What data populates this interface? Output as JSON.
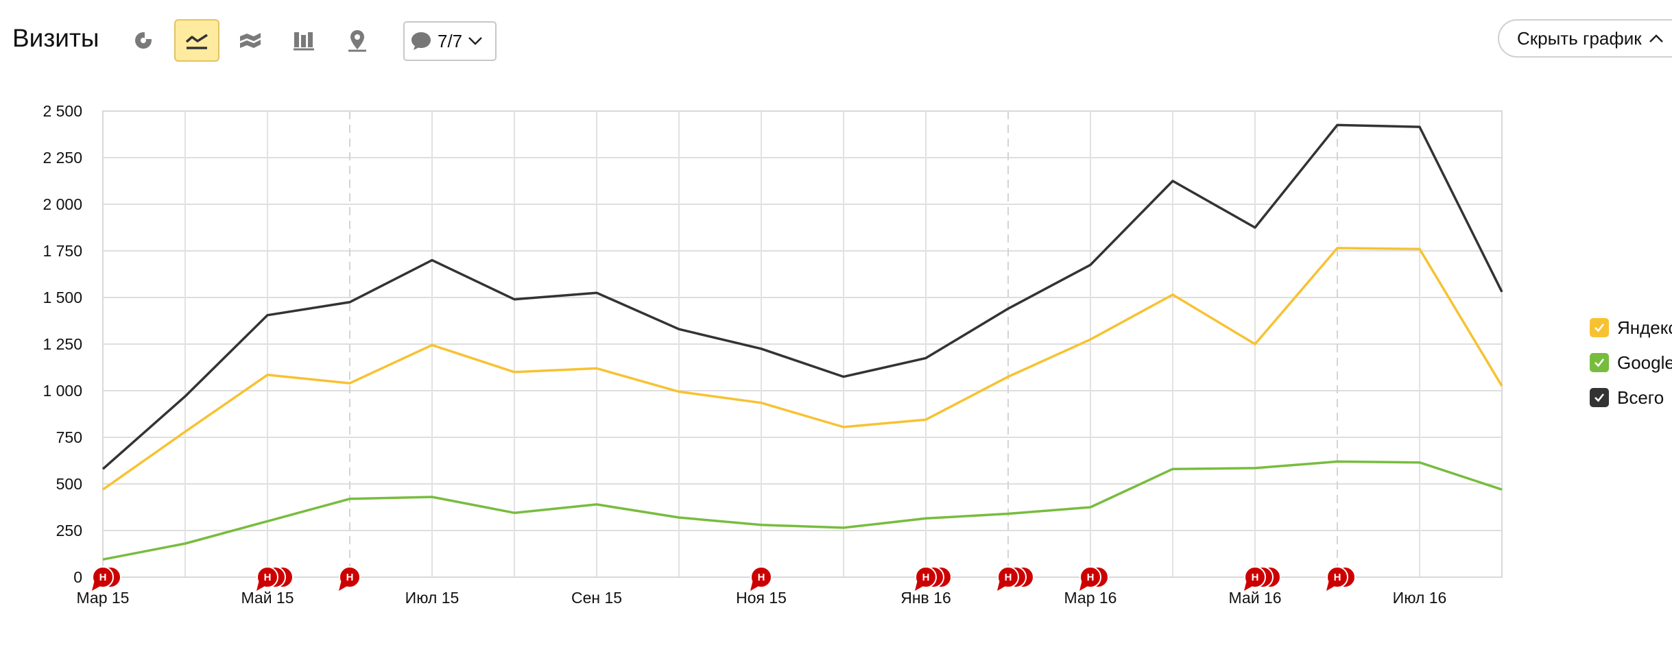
{
  "header": {
    "title": "Визиты",
    "notes_label": "7/7",
    "hide_button_label": "Скрыть график"
  },
  "toolbar": {
    "buttons": [
      {
        "icon": "pie-chart-icon",
        "active": false
      },
      {
        "icon": "line-chart-icon",
        "active": true
      },
      {
        "icon": "area-chart-icon",
        "active": false
      },
      {
        "icon": "bar-chart-icon",
        "active": false
      },
      {
        "icon": "map-pin-icon",
        "active": false
      }
    ]
  },
  "colors": {
    "yandex": "#f7c232",
    "google": "#78bc3e",
    "total": "#333333",
    "note_marker": "#cc0000",
    "active_button": "#ffeba0"
  },
  "legend": [
    {
      "label": "Яндекс",
      "color": "#f7c232",
      "checked": true
    },
    {
      "label": "Google",
      "color": "#78bc3e",
      "checked": true
    },
    {
      "label": "Всего",
      "color": "#333333",
      "checked": true
    }
  ],
  "chart_data": {
    "type": "line",
    "x": [
      "2015-03",
      "2015-04",
      "2015-05",
      "2015-06",
      "2015-07",
      "2015-08",
      "2015-09",
      "2015-10",
      "2015-11",
      "2015-12",
      "2016-01",
      "2016-02",
      "2016-03",
      "2016-04",
      "2016-05",
      "2016-06",
      "2016-07",
      "2016-08"
    ],
    "x_tick_labels": [
      "Мар 15",
      "Май 15",
      "Июл 15",
      "Сен 15",
      "Ноя 15",
      "Янв 16",
      "Мар 16",
      "Май 16",
      "Июл 16"
    ],
    "x_tick_positions": [
      "2015-03",
      "2015-05",
      "2015-07",
      "2015-09",
      "2015-11",
      "2016-01",
      "2016-03",
      "2016-05",
      "2016-07"
    ],
    "y_ticks": [
      0,
      250,
      500,
      750,
      1000,
      1250,
      1500,
      1750,
      2000,
      2250,
      2500
    ],
    "y_tick_labels": [
      "0",
      "250",
      "500",
      "750",
      "1 000",
      "1 250",
      "1 500",
      "1 750",
      "2 000",
      "2 250",
      "2 500"
    ],
    "ylim": [
      0,
      2500
    ],
    "grid": true,
    "legend_position": "right",
    "year_dividers": [
      "2015-06",
      "2016-02",
      "2016-06"
    ],
    "series": [
      {
        "name": "Всего",
        "color": "#333333",
        "values": [
          580,
          970,
          1405,
          1475,
          1700,
          1490,
          1525,
          1330,
          1225,
          1075,
          1175,
          1440,
          1675,
          2125,
          1875,
          2425,
          2415,
          1530
        ]
      },
      {
        "name": "Яндекс",
        "color": "#f7c232",
        "values": [
          470,
          780,
          1085,
          1040,
          1245,
          1100,
          1120,
          995,
          935,
          805,
          845,
          1075,
          1275,
          1515,
          1250,
          1765,
          1760,
          1025
        ]
      },
      {
        "name": "Google",
        "color": "#78bc3e",
        "values": [
          95,
          180,
          300,
          420,
          430,
          345,
          390,
          320,
          280,
          265,
          315,
          340,
          375,
          580,
          585,
          620,
          615,
          470
        ]
      }
    ],
    "notes": [
      {
        "x": "2015-03",
        "count": 2,
        "label": "Н"
      },
      {
        "x": "2015-05",
        "count": 3,
        "label": "Н"
      },
      {
        "x": "2015-06",
        "count": 1,
        "label": "Н"
      },
      {
        "x": "2015-11",
        "count": 1,
        "label": "Н"
      },
      {
        "x": "2016-01",
        "count": 3,
        "label": "Н"
      },
      {
        "x": "2016-02",
        "count": 3,
        "label": "Н"
      },
      {
        "x": "2016-03",
        "count": 2,
        "label": "Н"
      },
      {
        "x": "2016-05",
        "count": 3,
        "label": "Н"
      },
      {
        "x": "2016-06",
        "count": 2,
        "label": "Н"
      }
    ]
  }
}
